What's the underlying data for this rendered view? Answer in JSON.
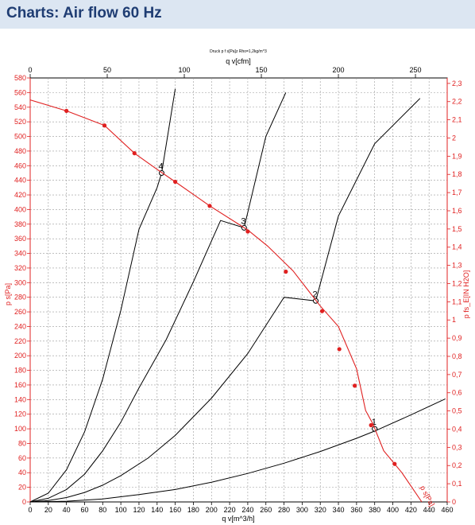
{
  "header": {
    "title": "Charts: Air flow 60 Hz"
  },
  "chart_data": {
    "type": "line",
    "subtitle": "Druck p f s[Pa]z Rho=1,2kg/m^3",
    "x_bottom": {
      "label": "q v[m^3/h]",
      "range": [
        0,
        460
      ],
      "ticks": [
        "0",
        "20",
        "40",
        "60",
        "80",
        "100",
        "120",
        "140",
        "160",
        "180",
        "200",
        "220",
        "240",
        "260",
        "280",
        "300",
        "320",
        "340",
        "360",
        "380",
        "400",
        "420",
        "440",
        "460"
      ]
    },
    "x_top": {
      "label": "q v[cfm]",
      "range": [
        0,
        270.6
      ],
      "ticks": [
        "0",
        "50",
        "100",
        "150",
        "200",
        "250"
      ]
    },
    "y_left": {
      "label": "p s[Pa]",
      "range": [
        0,
        580
      ],
      "ticks": [
        "0",
        "20",
        "40",
        "60",
        "80",
        "100",
        "120",
        "140",
        "160",
        "180",
        "200",
        "220",
        "240",
        "260",
        "280",
        "300",
        "320",
        "340",
        "360",
        "380",
        "400",
        "420",
        "440",
        "460",
        "480",
        "500",
        "520",
        "540",
        "560",
        "580"
      ]
    },
    "y_right": {
      "label": "p fs_E[IN H2O]",
      "range": [
        0,
        2.33
      ],
      "ticks": [
        "0",
        "0,1",
        "0,2",
        "0,3",
        "0,4",
        "0,5",
        "0,6",
        "0,7",
        "0,8",
        "0,9",
        "1",
        "1,1",
        "1,2",
        "1,3",
        "1,4",
        "1,5",
        "1,6",
        "1,7",
        "1,8",
        "1,9",
        "2",
        "2,1",
        "2,2",
        "2,3"
      ]
    },
    "fan_curve": {
      "label": "p s[Pa]",
      "color": "#e02020",
      "points": [
        [
          0,
          550
        ],
        [
          40,
          535
        ],
        [
          82,
          515
        ],
        [
          115,
          477
        ],
        [
          140,
          455
        ],
        [
          160,
          438
        ],
        [
          198,
          405
        ],
        [
          240,
          372
        ],
        [
          262,
          350
        ],
        [
          290,
          316
        ],
        [
          320,
          268
        ],
        [
          340,
          240
        ],
        [
          360,
          182
        ],
        [
          370,
          125
        ],
        [
          378,
          107
        ],
        [
          390,
          70
        ],
        [
          410,
          40
        ],
        [
          432,
          0
        ]
      ],
      "markers": [
        [
          40,
          535
        ],
        [
          82,
          515
        ],
        [
          115,
          477
        ],
        [
          160,
          438
        ],
        [
          198,
          405
        ],
        [
          240,
          370
        ],
        [
          282,
          315
        ],
        [
          322,
          261
        ],
        [
          341,
          209
        ],
        [
          358,
          159
        ],
        [
          376,
          105
        ],
        [
          402,
          52
        ]
      ]
    },
    "system_curves": [
      {
        "id": "1",
        "points": [
          [
            0,
            0
          ],
          [
            40,
            1
          ],
          [
            80,
            4
          ],
          [
            120,
            10
          ],
          [
            160,
            17
          ],
          [
            200,
            27
          ],
          [
            240,
            39
          ],
          [
            280,
            53
          ],
          [
            320,
            69
          ],
          [
            360,
            87
          ],
          [
            380,
            97
          ],
          [
            420,
            119
          ],
          [
            458,
            141
          ]
        ],
        "operating_point": [
          380,
          100
        ]
      },
      {
        "id": "2",
        "points": [
          [
            0,
            0
          ],
          [
            20,
            2
          ],
          [
            40,
            6
          ],
          [
            60,
            13
          ],
          [
            80,
            23
          ],
          [
            100,
            36
          ],
          [
            130,
            60
          ],
          [
            160,
            91
          ],
          [
            200,
            142
          ],
          [
            240,
            203
          ],
          [
            280,
            280
          ],
          [
            315,
            275
          ],
          [
            340,
            391
          ],
          [
            380,
            490
          ],
          [
            430,
            552
          ]
        ],
        "operating_point": [
          315,
          275
        ]
      },
      {
        "id": "3",
        "points": [
          [
            0,
            0
          ],
          [
            20,
            5
          ],
          [
            40,
            17
          ],
          [
            60,
            38
          ],
          [
            80,
            70
          ],
          [
            100,
            109
          ],
          [
            120,
            156
          ],
          [
            150,
            222
          ],
          [
            180,
            301
          ],
          [
            210,
            385
          ],
          [
            236,
            375
          ],
          [
            260,
            500
          ],
          [
            282,
            560
          ]
        ],
        "operating_point": [
          236,
          375
        ]
      },
      {
        "id": "4",
        "points": [
          [
            0,
            0
          ],
          [
            20,
            12
          ],
          [
            40,
            44
          ],
          [
            60,
            96
          ],
          [
            80,
            168
          ],
          [
            100,
            262
          ],
          [
            120,
            373
          ],
          [
            140,
            430
          ],
          [
            145,
            450
          ],
          [
            160,
            565
          ]
        ],
        "operating_point": [
          145,
          450
        ]
      }
    ]
  }
}
